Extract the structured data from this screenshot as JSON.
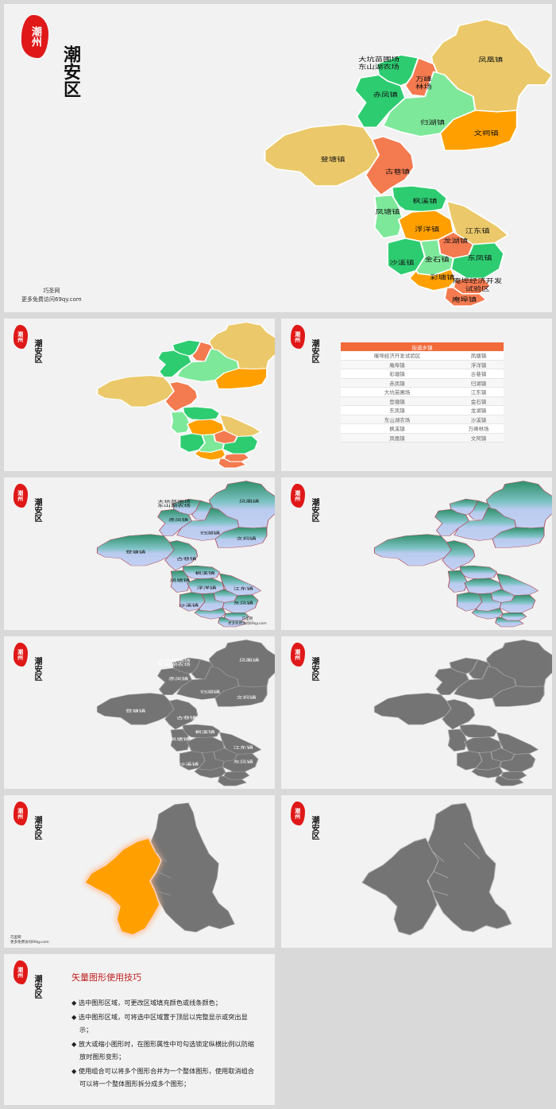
{
  "seal_text": "潮州",
  "title": "潮安区",
  "watermark": {
    "line1": "巧圣网",
    "line2": "更多免费访问69qy.com"
  },
  "colors": {
    "yellow": "#ebc96a",
    "green": "#2ecc71",
    "lightgreen": "#7ee89a",
    "orange": "#ffa000",
    "salmon": "#f47a4f",
    "red_seal": "#e01818",
    "grey": "#747474",
    "teal_top": "#3a9b78",
    "teal_mid": "#85c4c8",
    "lavender": "#bcc9ef",
    "table_header": "#f26a3a",
    "tips_title": "#c0201e"
  },
  "towns": {
    "dakeng": "大坑苗圃场",
    "dongshanhu": "东山湖农场",
    "wanfeng": "万峰",
    "linchang": "林场",
    "fenghuang": "凤凰镇",
    "chifeng": "赤凤镇",
    "guihu": "归湖镇",
    "wenci": "文祠镇",
    "dengtang": "登塘镇",
    "guxiang": "古巷镇",
    "fengxi": "枫溪镇",
    "fengtang": "凤塘镇",
    "fuyang": "浮洋镇",
    "jiangdong": "江东镇",
    "longhu": "龙湖镇",
    "shaxi": "沙溪镇",
    "jinshi": "金石镇",
    "dongfeng": "东凤镇",
    "caitang": "彩塘镇",
    "anbu_zone_1": "庵埠经济开发",
    "anbu_zone_2": "试验区",
    "anbu": "庵埠镇"
  },
  "table": {
    "header": "街道乡镇",
    "rows": [
      [
        "庵埠经济开发试验区",
        "凤塘镇"
      ],
      [
        "庵埠镇",
        "浮洋镇"
      ],
      [
        "彩塘镇",
        "古巷镇"
      ],
      [
        "赤凤镇",
        "归湖镇"
      ],
      [
        "大坑苗圃场",
        "江东镇"
      ],
      [
        "登塘镇",
        "金石镇"
      ],
      [
        "东凤镇",
        "龙湖镇"
      ],
      [
        "东山湖农场",
        "沙溪镇"
      ],
      [
        "枫溪镇",
        "万峰林场"
      ],
      [
        "凤凰镇",
        "文祠镇"
      ]
    ]
  },
  "tips": {
    "title": "矢量图形使用技巧",
    "items": [
      "◆ 选中图形区域，可更改区域填充颜色或线条颜色；",
      "◆ 选中图形区域，可将选中区域置于顶层以完整显示或突出显示；",
      "◆ 放大或缩小图形时，在图形属性中可勾选锁定纵横比例以防缩放时图形变形；",
      "◆ 使用组合可以将多个图形合并为一个整体图形，使用取消组合可以将一个整体图形拆分成多个图形；"
    ]
  }
}
